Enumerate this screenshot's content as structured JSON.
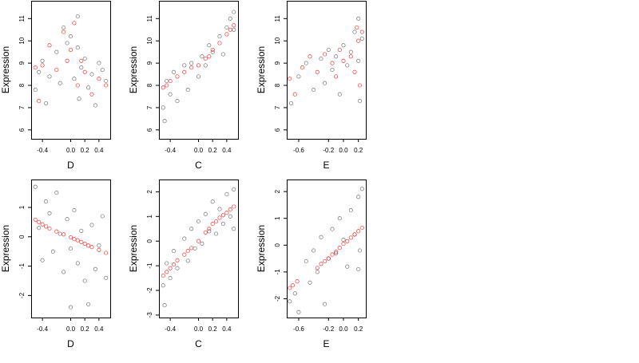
{
  "colors": {
    "black_points": "#000000",
    "red_points": "#ff0000",
    "background": "#ffffff",
    "frame": "#000000"
  },
  "chart_data": [
    {
      "type": "scatter",
      "panel": "top-left",
      "xlabel": "D",
      "ylabel": "Expression",
      "xlim": [
        -0.56,
        0.56
      ],
      "ylim": [
        5.6,
        11.8
      ],
      "xticks": [
        -0.4,
        0.0,
        0.2,
        0.4
      ],
      "xtick_labels": [
        "-0.4",
        "0.0",
        "0.2",
        "0.4"
      ],
      "yticks": [
        6,
        7,
        8,
        9,
        10,
        11
      ],
      "ytick_labels": [
        "6",
        "7",
        "8",
        "9",
        "10",
        "11"
      ],
      "grid": false,
      "series": [
        {
          "color": "black",
          "points": [
            [
              -0.5,
              7.8
            ],
            [
              -0.45,
              8.6
            ],
            [
              -0.4,
              9.1
            ],
            [
              -0.35,
              7.2
            ],
            [
              -0.3,
              8.4
            ],
            [
              -0.2,
              9.5
            ],
            [
              -0.15,
              8.1
            ],
            [
              -0.1,
              10.6
            ],
            [
              -0.05,
              9.9
            ],
            [
              0.0,
              10.2
            ],
            [
              0.05,
              8.3
            ],
            [
              0.1,
              11.1
            ],
            [
              0.1,
              9.7
            ],
            [
              0.12,
              7.4
            ],
            [
              0.15,
              8.8
            ],
            [
              0.2,
              9.2
            ],
            [
              0.25,
              7.9
            ],
            [
              0.3,
              8.5
            ],
            [
              0.35,
              7.1
            ],
            [
              0.4,
              9.0
            ],
            [
              0.45,
              8.7
            ],
            [
              0.5,
              8.2
            ]
          ]
        },
        {
          "color": "red",
          "points": [
            [
              -0.5,
              8.8
            ],
            [
              -0.45,
              7.3
            ],
            [
              -0.4,
              8.9
            ],
            [
              -0.3,
              9.8
            ],
            [
              -0.2,
              8.7
            ],
            [
              -0.1,
              10.4
            ],
            [
              -0.05,
              9.1
            ],
            [
              0.0,
              9.6
            ],
            [
              0.05,
              10.8
            ],
            [
              0.1,
              8.0
            ],
            [
              0.15,
              9.1
            ],
            [
              0.2,
              8.6
            ],
            [
              0.3,
              7.6
            ],
            [
              0.4,
              8.3
            ],
            [
              0.5,
              8.0
            ]
          ]
        }
      ]
    },
    {
      "type": "scatter",
      "panel": "top-middle",
      "xlabel": "C",
      "ylabel": "Expression",
      "xlim": [
        -0.56,
        0.56
      ],
      "ylim": [
        5.6,
        11.8
      ],
      "xticks": [
        -0.4,
        0.0,
        0.2,
        0.4
      ],
      "xtick_labels": [
        "-0.4",
        "0.0",
        "0.2",
        "0.4"
      ],
      "yticks": [
        6,
        7,
        8,
        9,
        10,
        11
      ],
      "ytick_labels": [
        "6",
        "7",
        "8",
        "9",
        "10",
        "11"
      ],
      "grid": false,
      "series": [
        {
          "color": "black",
          "points": [
            [
              -0.5,
              7.0
            ],
            [
              -0.48,
              6.4
            ],
            [
              -0.45,
              8.2
            ],
            [
              -0.4,
              7.6
            ],
            [
              -0.35,
              8.6
            ],
            [
              -0.3,
              7.3
            ],
            [
              -0.2,
              8.9
            ],
            [
              -0.15,
              7.8
            ],
            [
              -0.1,
              9.0
            ],
            [
              0.0,
              8.4
            ],
            [
              0.05,
              9.3
            ],
            [
              0.1,
              8.9
            ],
            [
              0.15,
              9.8
            ],
            [
              0.2,
              9.5
            ],
            [
              0.3,
              10.2
            ],
            [
              0.35,
              9.4
            ],
            [
              0.4,
              10.6
            ],
            [
              0.45,
              11.0
            ],
            [
              0.5,
              10.5
            ],
            [
              0.5,
              11.3
            ]
          ]
        },
        {
          "color": "red",
          "points": [
            [
              -0.5,
              7.9
            ],
            [
              -0.45,
              8.0
            ],
            [
              -0.4,
              8.2
            ],
            [
              -0.3,
              8.4
            ],
            [
              -0.2,
              8.6
            ],
            [
              -0.1,
              8.8
            ],
            [
              0.0,
              8.9
            ],
            [
              0.1,
              9.2
            ],
            [
              0.15,
              9.3
            ],
            [
              0.2,
              9.6
            ],
            [
              0.3,
              9.9
            ],
            [
              0.4,
              10.3
            ],
            [
              0.45,
              10.5
            ],
            [
              0.5,
              10.7
            ]
          ]
        }
      ]
    },
    {
      "type": "scatter",
      "panel": "top-right",
      "xlabel": "E",
      "ylabel": "Expression",
      "xlim": [
        -0.76,
        0.3
      ],
      "ylim": [
        5.6,
        11.8
      ],
      "xticks": [
        -0.6,
        -0.2,
        0.0,
        0.2
      ],
      "xtick_labels": [
        "-0.6",
        "-0.2",
        "0.0",
        "0.2"
      ],
      "yticks": [
        6,
        7,
        8,
        9,
        10,
        11
      ],
      "ytick_labels": [
        "6",
        "7",
        "8",
        "9",
        "10",
        "11"
      ],
      "grid": false,
      "series": [
        {
          "color": "black",
          "points": [
            [
              -0.7,
              7.2
            ],
            [
              -0.6,
              8.4
            ],
            [
              -0.5,
              9.0
            ],
            [
              -0.4,
              7.8
            ],
            [
              -0.3,
              9.2
            ],
            [
              -0.25,
              8.1
            ],
            [
              -0.2,
              9.6
            ],
            [
              -0.15,
              8.7
            ],
            [
              -0.1,
              9.3
            ],
            [
              -0.05,
              7.6
            ],
            [
              0.0,
              9.8
            ],
            [
              0.05,
              8.9
            ],
            [
              0.1,
              9.5
            ],
            [
              0.15,
              10.4
            ],
            [
              0.2,
              9.1
            ],
            [
              0.2,
              11.0
            ],
            [
              0.22,
              7.3
            ],
            [
              0.25,
              10.1
            ]
          ]
        },
        {
          "color": "red",
          "points": [
            [
              -0.72,
              8.3
            ],
            [
              -0.65,
              7.6
            ],
            [
              -0.55,
              8.8
            ],
            [
              -0.45,
              9.3
            ],
            [
              -0.35,
              8.6
            ],
            [
              -0.25,
              9.4
            ],
            [
              -0.15,
              9.0
            ],
            [
              -0.1,
              8.4
            ],
            [
              -0.05,
              9.6
            ],
            [
              0.0,
              9.1
            ],
            [
              0.1,
              9.3
            ],
            [
              0.15,
              8.6
            ],
            [
              0.18,
              10.6
            ],
            [
              0.2,
              10.0
            ],
            [
              0.22,
              8.0
            ],
            [
              0.25,
              10.4
            ]
          ]
        }
      ]
    },
    {
      "type": "scatter",
      "panel": "bottom-left",
      "xlabel": "D",
      "ylabel": "Expression",
      "xlim": [
        -0.56,
        0.56
      ],
      "ylim": [
        -2.75,
        1.95
      ],
      "xticks": [
        -0.4,
        0.0,
        0.2,
        0.4
      ],
      "xtick_labels": [
        "-0.4",
        "0.0",
        "0.2",
        "0.4"
      ],
      "yticks": [
        -2,
        -1,
        0,
        1
      ],
      "ytick_labels": [
        "-2",
        "-1",
        "0",
        "1"
      ],
      "grid": false,
      "series": [
        {
          "color": "black",
          "points": [
            [
              -0.5,
              1.7
            ],
            [
              -0.45,
              0.3
            ],
            [
              -0.4,
              -0.8
            ],
            [
              -0.35,
              1.2
            ],
            [
              -0.3,
              0.8
            ],
            [
              -0.25,
              -0.5
            ],
            [
              -0.2,
              1.5
            ],
            [
              -0.15,
              0.1
            ],
            [
              -0.1,
              -1.2
            ],
            [
              -0.05,
              0.6
            ],
            [
              0.0,
              -0.4
            ],
            [
              0.0,
              -2.4
            ],
            [
              0.05,
              0.9
            ],
            [
              0.1,
              -0.9
            ],
            [
              0.15,
              0.2
            ],
            [
              0.2,
              -1.5
            ],
            [
              0.25,
              -2.3
            ],
            [
              0.3,
              0.4
            ],
            [
              0.35,
              -1.1
            ],
            [
              0.4,
              -0.3
            ],
            [
              0.45,
              0.7
            ],
            [
              0.5,
              -1.4
            ]
          ]
        },
        {
          "color": "red",
          "points": [
            [
              -0.5,
              0.58
            ],
            [
              -0.45,
              0.5
            ],
            [
              -0.4,
              0.42
            ],
            [
              -0.35,
              0.35
            ],
            [
              -0.3,
              0.28
            ],
            [
              -0.2,
              0.18
            ],
            [
              -0.1,
              0.08
            ],
            [
              0.0,
              -0.02
            ],
            [
              0.05,
              -0.08
            ],
            [
              0.1,
              -0.12
            ],
            [
              0.15,
              -0.18
            ],
            [
              0.2,
              -0.24
            ],
            [
              0.25,
              -0.3
            ],
            [
              0.3,
              -0.35
            ],
            [
              0.4,
              -0.45
            ],
            [
              0.5,
              -0.55
            ]
          ]
        }
      ]
    },
    {
      "type": "scatter",
      "panel": "bottom-middle",
      "xlabel": "C",
      "ylabel": "Expression",
      "xlim": [
        -0.56,
        0.56
      ],
      "ylim": [
        -3.1,
        2.5
      ],
      "xticks": [
        -0.4,
        0.0,
        0.2,
        0.4
      ],
      "xtick_labels": [
        "-0.4",
        "0.0",
        "0.2",
        "0.4"
      ],
      "yticks": [
        -3,
        -2,
        -1,
        0,
        1,
        2
      ],
      "ytick_labels": [
        "-3",
        "-2",
        "-1",
        "0",
        "1",
        "2"
      ],
      "grid": false,
      "series": [
        {
          "color": "black",
          "points": [
            [
              -0.5,
              -1.8
            ],
            [
              -0.48,
              -2.6
            ],
            [
              -0.45,
              -0.9
            ],
            [
              -0.4,
              -1.5
            ],
            [
              -0.35,
              -0.4
            ],
            [
              -0.3,
              -1.1
            ],
            [
              -0.2,
              0.1
            ],
            [
              -0.15,
              -0.8
            ],
            [
              -0.1,
              0.5
            ],
            [
              -0.05,
              -0.3
            ],
            [
              0.0,
              0.8
            ],
            [
              0.05,
              -0.1
            ],
            [
              0.1,
              1.1
            ],
            [
              0.15,
              0.4
            ],
            [
              0.2,
              1.6
            ],
            [
              0.25,
              0.3
            ],
            [
              0.3,
              1.3
            ],
            [
              0.35,
              0.7
            ],
            [
              0.4,
              1.9
            ],
            [
              0.45,
              1.0
            ],
            [
              0.5,
              2.1
            ],
            [
              0.5,
              0.5
            ]
          ]
        },
        {
          "color": "red",
          "points": [
            [
              -0.5,
              -1.4
            ],
            [
              -0.45,
              -1.25
            ],
            [
              -0.4,
              -1.1
            ],
            [
              -0.35,
              -0.95
            ],
            [
              -0.3,
              -0.78
            ],
            [
              -0.2,
              -0.55
            ],
            [
              -0.15,
              -0.4
            ],
            [
              -0.1,
              -0.28
            ],
            [
              0.0,
              0.0
            ],
            [
              0.1,
              0.35
            ],
            [
              0.15,
              0.5
            ],
            [
              0.2,
              0.7
            ],
            [
              0.25,
              0.8
            ],
            [
              0.3,
              0.95
            ],
            [
              0.35,
              1.05
            ],
            [
              0.4,
              1.15
            ],
            [
              0.45,
              1.28
            ],
            [
              0.5,
              1.4
            ]
          ]
        }
      ]
    },
    {
      "type": "scatter",
      "panel": "bottom-right",
      "xlabel": "E",
      "ylabel": "Expression",
      "xlim": [
        -0.76,
        0.3
      ],
      "ylim": [
        -2.7,
        2.45
      ],
      "xticks": [
        -0.6,
        -0.2,
        0.0,
        0.2
      ],
      "xtick_labels": [
        "-0.6",
        "-0.2",
        "0.0",
        "0.2"
      ],
      "yticks": [
        -2,
        -1,
        0,
        1,
        2
      ],
      "ytick_labels": [
        "-2",
        "-1",
        "0",
        "1",
        "2"
      ],
      "grid": false,
      "series": [
        {
          "color": "black",
          "points": [
            [
              -0.72,
              -2.1
            ],
            [
              -0.65,
              -1.8
            ],
            [
              -0.6,
              -2.5
            ],
            [
              -0.5,
              -0.6
            ],
            [
              -0.45,
              -1.4
            ],
            [
              -0.4,
              -0.2
            ],
            [
              -0.35,
              -1.0
            ],
            [
              -0.3,
              0.3
            ],
            [
              -0.25,
              -2.2
            ],
            [
              -0.2,
              -0.5
            ],
            [
              -0.15,
              0.6
            ],
            [
              -0.1,
              -0.3
            ],
            [
              -0.05,
              1.0
            ],
            [
              0.0,
              0.2
            ],
            [
              0.05,
              -0.8
            ],
            [
              0.1,
              1.3
            ],
            [
              0.15,
              0.4
            ],
            [
              0.2,
              -0.9
            ],
            [
              0.2,
              1.8
            ],
            [
              0.22,
              -0.2
            ],
            [
              0.25,
              2.1
            ]
          ]
        },
        {
          "color": "red",
          "points": [
            [
              -0.72,
              -1.6
            ],
            [
              -0.68,
              -1.5
            ],
            [
              -0.62,
              -1.35
            ],
            [
              -0.35,
              -0.85
            ],
            [
              -0.3,
              -0.7
            ],
            [
              -0.25,
              -0.6
            ],
            [
              -0.2,
              -0.5
            ],
            [
              -0.15,
              -0.35
            ],
            [
              -0.1,
              -0.25
            ],
            [
              -0.05,
              -0.1
            ],
            [
              0.0,
              0.05
            ],
            [
              0.05,
              0.15
            ],
            [
              0.1,
              0.28
            ],
            [
              0.15,
              0.4
            ],
            [
              0.2,
              0.52
            ],
            [
              0.25,
              0.65
            ]
          ]
        }
      ]
    }
  ]
}
